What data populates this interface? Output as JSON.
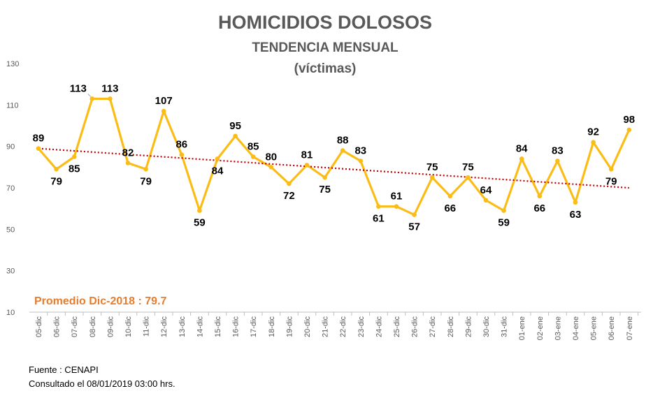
{
  "chart_data": {
    "type": "line",
    "title": "HOMICIDIOS DOLOSOS",
    "subtitle": "TENDENCIA MENSUAL",
    "unit": "(víctimas)",
    "categories": [
      "05-dic",
      "06-dic",
      "07-dic",
      "08-dic",
      "09-dic",
      "10-dic",
      "11-dic",
      "12-dic",
      "13-dic",
      "14-dic",
      "15-dic",
      "16-dic",
      "17-dic",
      "18-dic",
      "19-dic",
      "20-dic",
      "21-dic",
      "22-dic",
      "23-dic",
      "24-dic",
      "25-dic",
      "26-dic",
      "27-dic",
      "28-dic",
      "29-dic",
      "30-dic",
      "31-dic",
      "01-ene",
      "02-ene",
      "03-ene",
      "04-ene",
      "05-ene",
      "06-ene",
      "07-ene"
    ],
    "values": [
      89,
      79,
      85,
      113,
      113,
      82,
      79,
      107,
      86,
      59,
      84,
      95,
      85,
      80,
      72,
      81,
      75,
      88,
      83,
      61,
      61,
      57,
      75,
      66,
      75,
      64,
      59,
      84,
      66,
      83,
      63,
      92,
      79,
      98
    ],
    "ylim": [
      10,
      130
    ],
    "yticks": [
      10,
      30,
      50,
      70,
      90,
      110,
      130
    ],
    "trendline": {
      "type": "linear",
      "start": 89,
      "end": 70
    },
    "grid": false,
    "line_color": "#fbbd15",
    "trend_color": "#c00000"
  },
  "average_label": "Promedio Dic-2018 : 79.7",
  "source": "Fuente : CENAPI",
  "consulted": "Consultado el 08/01/2019  03:00  hrs."
}
